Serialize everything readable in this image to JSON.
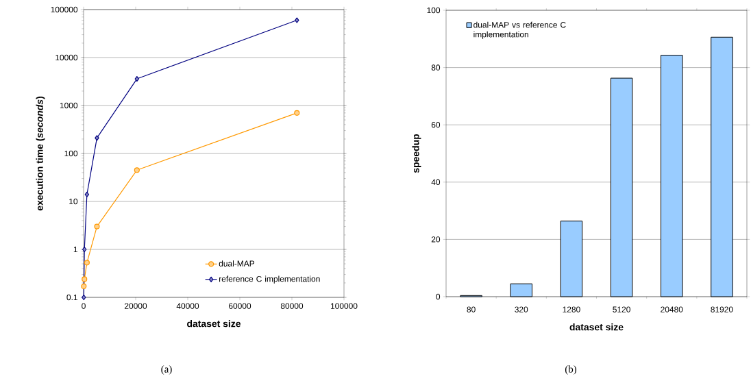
{
  "chart_data": [
    {
      "type": "line",
      "xlabel": "dataset size",
      "ylabel": "execution time (*seconds*)",
      "x": [
        80,
        320,
        1280,
        5120,
        20480,
        81920
      ],
      "log": "y",
      "xlim": [
        0,
        100000
      ],
      "xticks": [
        0,
        20000,
        40000,
        60000,
        80000,
        100000
      ],
      "ylim": [
        0.1,
        100000
      ],
      "yticks": [
        0.1,
        1,
        10,
        100,
        1000,
        10000,
        100000
      ],
      "grid": "y",
      "legend": "bottom right",
      "annotations": [
        "(a)"
      ],
      "series": [
        {
          "name": "dual-MAP",
          "color": "#ff9900",
          "marker": "circle",
          "values": [
            0.17,
            0.24,
            0.53,
            3,
            45,
            700
          ]
        },
        {
          "name": "reference C implementation",
          "color": "#000080",
          "marker": "diamond",
          "values": [
            0.1,
            1,
            14,
            210,
            3600,
            60000
          ]
        }
      ]
    },
    {
      "type": "bar",
      "xlabel": "dataset size",
      "ylabel": "speedup",
      "categories": [
        "80",
        "320",
        "1280",
        "5120",
        "20480",
        "81920"
      ],
      "ylim": [
        0,
        100
      ],
      "yticks": [
        0,
        20,
        40,
        60,
        80,
        100
      ],
      "grid": "y",
      "legend": "top left",
      "annotations": [
        "(b)"
      ],
      "series": [
        {
          "name": "dual-MAP vs reference C implementation",
          "color": "#99ccff",
          "values": [
            0.4,
            4.5,
            26.4,
            76.3,
            84.3,
            90.6
          ]
        }
      ]
    }
  ]
}
